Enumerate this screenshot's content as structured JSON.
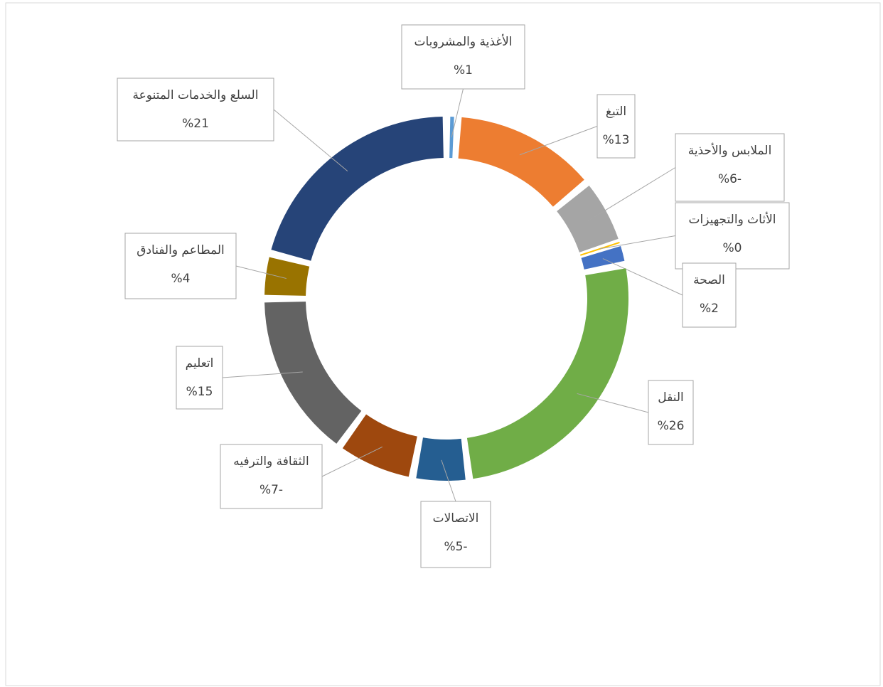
{
  "chart_data": {
    "type": "doughnut",
    "categories": [
      "الأغذية والمشروبات",
      "التبغ",
      "الملابس والأحذية",
      "الأثاث والتجهيزات",
      "الصحة",
      "النقل",
      "الاتصالات",
      "الثقافة والترفيه",
      "اتعليم",
      "المطاعم والفنادق",
      "السلع والخدمات المتنوعة"
    ],
    "values": [
      1,
      13,
      -6,
      0,
      2,
      26,
      -5,
      -7,
      15,
      4,
      21
    ],
    "value_labels": [
      "%1",
      "%13",
      "%6-",
      "%0",
      "%2",
      "%26",
      "%5-",
      "%7-",
      "%15",
      "%4",
      "%21"
    ],
    "colors": [
      "#5b9bd5",
      "#ed7d31",
      "#a5a5a5",
      "#ffc000",
      "#4472c4",
      "#70ad47",
      "#255e91",
      "#9e480e",
      "#636363",
      "#997300",
      "#264478"
    ]
  }
}
